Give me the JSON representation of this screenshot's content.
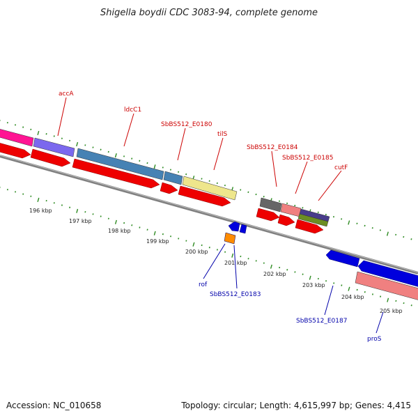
{
  "title": "Shigella boydii CDC 3083-94, complete genome",
  "footer": {
    "accession": "Accession: NC_010658",
    "summary": "Topology: circular; Length: 4,615,997 bp; Genes: 4,415"
  },
  "colors": {
    "backbone": "#808080",
    "tick": "#2e8b22",
    "label_outer": "#cc0000",
    "label_inner": "#0000aa",
    "cds_forward": "#ee0000",
    "cds_reverse": "#0000dd",
    "accA": "#ff1493",
    "accA_2": "#7b68ee",
    "ldcC": "#4682b4",
    "tilS": "#eee68c",
    "grey_gene": "#666666",
    "pink_gene": "#f08080",
    "cutF": "#483d8b",
    "olive": "#6b8e23",
    "orange": "#ff8c00"
  },
  "outer_labels": [
    {
      "id": "accA",
      "text": "accA"
    },
    {
      "id": "ldcC1",
      "text": "ldcC1"
    },
    {
      "id": "E0180",
      "text": "SbBS512_E0180"
    },
    {
      "id": "tilS",
      "text": "tilS"
    },
    {
      "id": "E0184",
      "text": "SbBS512_E0184"
    },
    {
      "id": "E0185",
      "text": "SbBS512_E0185"
    },
    {
      "id": "cutF",
      "text": "cutF"
    }
  ],
  "inner_labels": [
    {
      "id": "rof",
      "text": "rof"
    },
    {
      "id": "E0183",
      "text": "SbBS512_E0183"
    },
    {
      "id": "E0187",
      "text": "SbBS512_E0187"
    },
    {
      "id": "proS",
      "text": "proS"
    }
  ],
  "kbp_ticks": [
    "196 kbp",
    "197 kbp",
    "198 kbp",
    "199 kbp",
    "200 kbp",
    "201 kbp",
    "202 kbp",
    "203 kbp",
    "204 kbp",
    "205 kbp"
  ]
}
